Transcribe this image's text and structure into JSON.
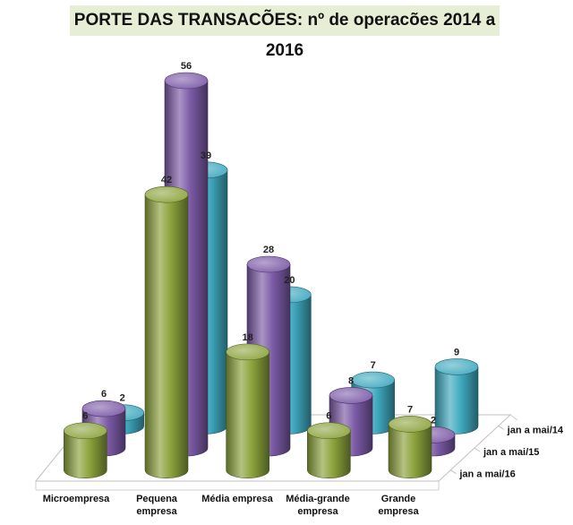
{
  "chart_data": {
    "type": "bar",
    "title": "PORTE DAS TRANSACÕES:  nº de operacões 2014 a 2016",
    "categories": [
      "Microempresa",
      "Pequena empresa",
      "Média empresa",
      "Média-grande empresa",
      "Grande empresa"
    ],
    "category_lines": [
      [
        "Microempresa"
      ],
      [
        "Pequena",
        "empresa"
      ],
      [
        "Média empresa"
      ],
      [
        "Média-grande",
        "empresa"
      ],
      [
        "Grande",
        "empresa"
      ]
    ],
    "series": [
      {
        "name": "jan a mai/14",
        "values": [
          2,
          39,
          20,
          7,
          9
        ],
        "color": "#3fa9bf"
      },
      {
        "name": "jan a mai/15",
        "values": [
          6,
          56,
          28,
          8,
          2
        ],
        "color": "#7b5aa6"
      },
      {
        "name": "jan a mai/16",
        "values": [
          6,
          42,
          18,
          6,
          7
        ],
        "color": "#8ba33c"
      }
    ],
    "legend_placement": "right (depth axis)",
    "data_labels": true
  }
}
